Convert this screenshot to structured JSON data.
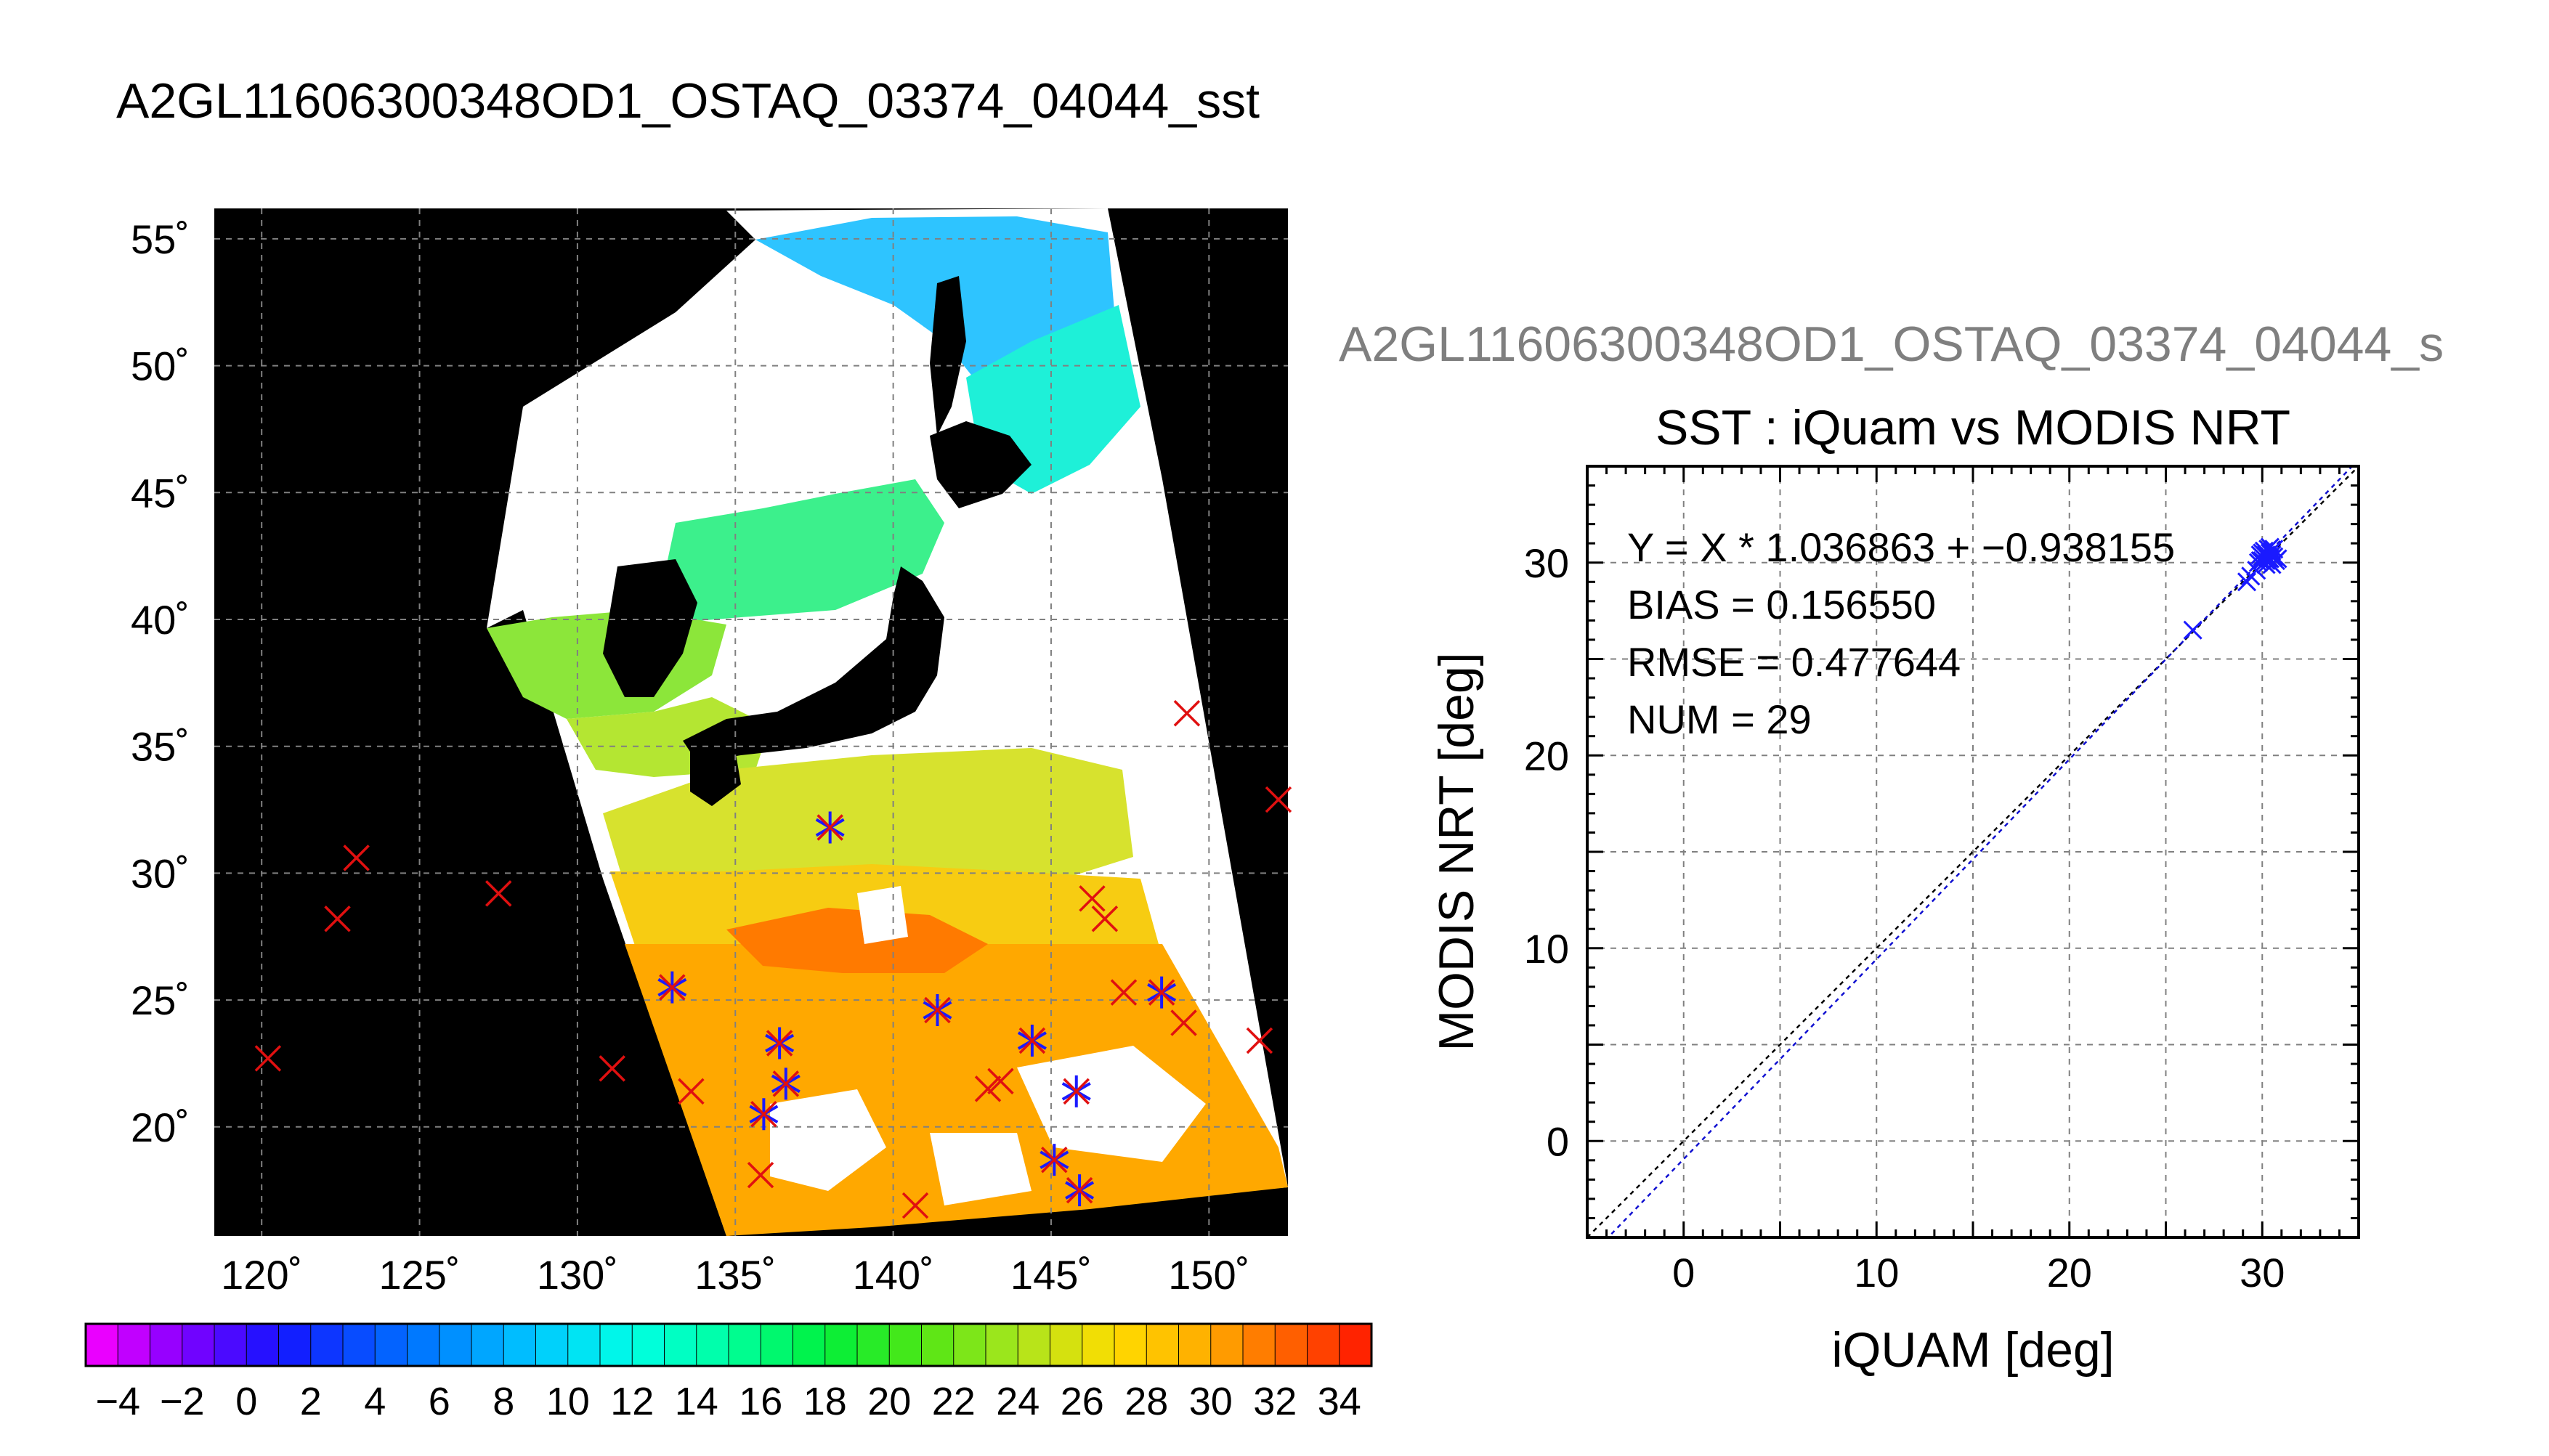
{
  "page_title": "A2GL11606300348OD1_OSTAQ_03374_04044_sst",
  "map": {
    "lat_labels": [
      "55˚",
      "50˚",
      "45˚",
      "40˚",
      "35˚",
      "30˚",
      "25˚",
      "20˚"
    ],
    "lon_labels": [
      "120˚",
      "125˚",
      "130˚",
      "135˚",
      "140˚",
      "145˚",
      "150˚"
    ],
    "lon_range": [
      118.5,
      152.5
    ],
    "lat_range": [
      15.7,
      56.2
    ],
    "lon_ticks": [
      120,
      125,
      130,
      135,
      140,
      145,
      150
    ],
    "lat_ticks": [
      55,
      50,
      45,
      40,
      35,
      30,
      25,
      20
    ],
    "colorbar": {
      "range": [
        -5,
        35
      ],
      "tick_values": [
        -4,
        -2,
        0,
        2,
        4,
        6,
        8,
        10,
        12,
        14,
        16,
        18,
        20,
        22,
        24,
        26,
        28,
        30,
        32,
        34
      ],
      "tick_labels": [
        "−4",
        "−2",
        "0",
        "2",
        "4",
        "6",
        "8",
        "10",
        "12",
        "14",
        "16",
        "18",
        "20",
        "22",
        "24",
        "26",
        "28",
        "30",
        "32",
        "34"
      ]
    },
    "matchups": [
      {
        "lon": 120.2,
        "lat": 22.7
      },
      {
        "lon": 122.4,
        "lat": 28.2
      },
      {
        "lon": 123.0,
        "lat": 30.6
      },
      {
        "lon": 127.5,
        "lat": 29.2
      },
      {
        "lon": 131.1,
        "lat": 22.3
      },
      {
        "lon": 133.0,
        "lat": 25.5,
        "matched": true
      },
      {
        "lon": 133.6,
        "lat": 21.4
      },
      {
        "lon": 135.8,
        "lat": 18.1
      },
      {
        "lon": 135.9,
        "lat": 20.5,
        "matched": true
      },
      {
        "lon": 136.4,
        "lat": 23.3,
        "matched": true
      },
      {
        "lon": 136.6,
        "lat": 21.7,
        "matched": true
      },
      {
        "lon": 138.0,
        "lat": 31.8,
        "matched": true
      },
      {
        "lon": 140.7,
        "lat": 16.9
      },
      {
        "lon": 141.4,
        "lat": 24.6,
        "matched": true
      },
      {
        "lon": 143.0,
        "lat": 21.5
      },
      {
        "lon": 143.4,
        "lat": 21.8
      },
      {
        "lon": 144.4,
        "lat": 23.4,
        "matched": true
      },
      {
        "lon": 145.1,
        "lat": 18.7,
        "matched": true
      },
      {
        "lon": 145.8,
        "lat": 21.4,
        "matched": true
      },
      {
        "lon": 145.9,
        "lat": 17.5,
        "matched": true
      },
      {
        "lon": 146.3,
        "lat": 29.0
      },
      {
        "lon": 146.7,
        "lat": 28.2
      },
      {
        "lon": 147.3,
        "lat": 25.3
      },
      {
        "lon": 148.5,
        "lat": 25.3,
        "matched": true
      },
      {
        "lon": 149.2,
        "lat": 24.1
      },
      {
        "lon": 149.3,
        "lat": 36.3
      },
      {
        "lon": 151.6,
        "lat": 23.4
      },
      {
        "lon": 152.2,
        "lat": 32.9
      }
    ]
  },
  "scatter": {
    "header": "A2GL11606300348OD1_OSTAQ_03374_04044_s",
    "stats": {
      "regression": "Y = X * 1.036863 + −0.938155",
      "bias": "BIAS = 0.156550",
      "rmse": "RMSE = 0.477644",
      "num": "NUM = 29"
    }
  },
  "chart_data": {
    "type": "scatter",
    "title": "SST : iQuam vs MODIS NRT",
    "xlabel": "iQUAM [deg]",
    "ylabel": "MODIS NRT [deg]",
    "xlim": [
      -5,
      35
    ],
    "ylim": [
      -5,
      35
    ],
    "x_tick_values": [
      0,
      10,
      20,
      30
    ],
    "x_tick_labels": [
      "0",
      "10",
      "20",
      "30"
    ],
    "y_tick_values": [
      0,
      10,
      20,
      30
    ],
    "y_tick_labels": [
      "0",
      "10",
      "20",
      "30"
    ],
    "grid": true,
    "regression": {
      "slope": 1.036863,
      "intercept": -0.938155
    },
    "reference_line": "y = x",
    "points": [
      {
        "x": 26.4,
        "y": 26.5
      },
      {
        "x": 29.2,
        "y": 29.0
      },
      {
        "x": 29.4,
        "y": 29.3
      },
      {
        "x": 29.7,
        "y": 29.6
      },
      {
        "x": 29.8,
        "y": 30.0
      },
      {
        "x": 29.9,
        "y": 30.1
      },
      {
        "x": 30.0,
        "y": 30.3
      },
      {
        "x": 30.0,
        "y": 30.5
      },
      {
        "x": 30.1,
        "y": 30.2
      },
      {
        "x": 30.1,
        "y": 30.6
      },
      {
        "x": 30.2,
        "y": 30.4
      },
      {
        "x": 30.2,
        "y": 30.1
      },
      {
        "x": 30.3,
        "y": 30.7
      },
      {
        "x": 30.3,
        "y": 30.3
      },
      {
        "x": 30.4,
        "y": 30.5
      },
      {
        "x": 30.4,
        "y": 30.2
      },
      {
        "x": 30.5,
        "y": 30.6
      },
      {
        "x": 30.5,
        "y": 30.4
      },
      {
        "x": 30.6,
        "y": 30.3
      },
      {
        "x": 30.6,
        "y": 30.7
      },
      {
        "x": 30.1,
        "y": 30.0
      },
      {
        "x": 30.7,
        "y": 30.1
      },
      {
        "x": 29.9,
        "y": 30.4
      },
      {
        "x": 30.2,
        "y": 29.9
      },
      {
        "x": 30.0,
        "y": 30.1
      },
      {
        "x": 30.3,
        "y": 30.2
      },
      {
        "x": 30.8,
        "y": 30.2
      },
      {
        "x": 30.5,
        "y": 29.9
      },
      {
        "x": 30.4,
        "y": 30.8
      }
    ]
  }
}
